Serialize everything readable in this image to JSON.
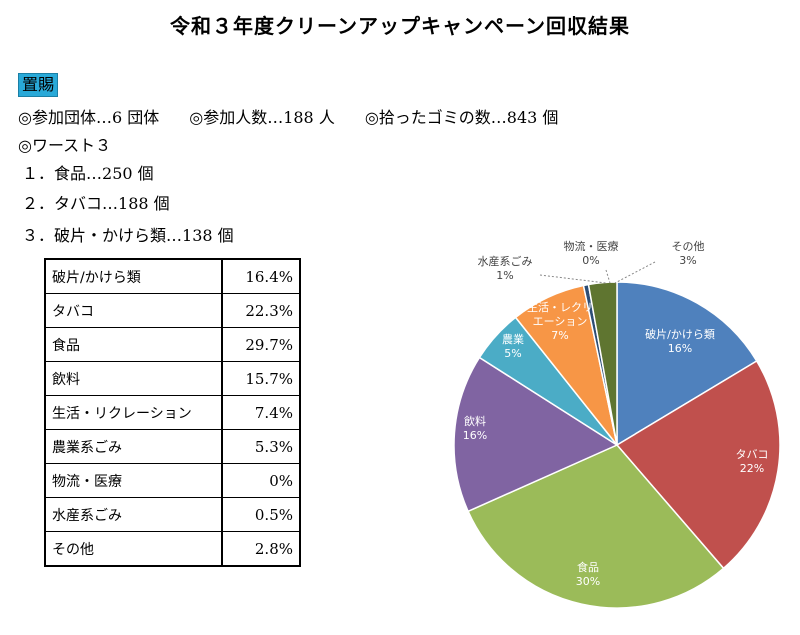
{
  "title": "令和３年度クリーンアップキャンペーン回収結果",
  "region": "置賜",
  "stats": {
    "groups": "◎参加団体…6 団体",
    "people": "◎参加人数…188 人",
    "trash": "◎拾ったゴミの数…843 個"
  },
  "worst": {
    "heading": "◎ワースト３",
    "items": [
      {
        "rank": "１．",
        "text": "食品…250 個"
      },
      {
        "rank": "２．",
        "text": "タバコ…188 個"
      },
      {
        "rank": "３．",
        "text": "破片・かけら類…138 個"
      }
    ]
  },
  "table": [
    {
      "category": "破片/かけら類",
      "value": "16.4%"
    },
    {
      "category": "タバコ",
      "value": "22.3%"
    },
    {
      "category": "食品",
      "value": "29.7%"
    },
    {
      "category": "飲料",
      "value": "15.7%"
    },
    {
      "category": "生活・リクレーション",
      "value": "7.4%"
    },
    {
      "category": "農業系ごみ",
      "value": "5.3%"
    },
    {
      "category": "物流・医療",
      "value": "0%"
    },
    {
      "category": "水産系ごみ",
      "value": "0.5%"
    },
    {
      "category": "その他",
      "value": "2.8%"
    }
  ],
  "chart_data": {
    "type": "pie",
    "start_angle_deg": 0,
    "direction": "clockwise",
    "slices": [
      {
        "name": "破片/かけら類",
        "value": 16.4,
        "label_pct": "16%",
        "color": "#4f81bd"
      },
      {
        "name": "タバコ",
        "value": 22.3,
        "label_pct": "22%",
        "color": "#c0504d"
      },
      {
        "name": "食品",
        "value": 29.7,
        "label_pct": "30%",
        "color": "#9bbb59"
      },
      {
        "name": "飲料",
        "value": 15.7,
        "label_pct": "16%",
        "color": "#8064a2"
      },
      {
        "name": "農業",
        "value": 5.3,
        "label_pct": "5%",
        "color": "#4bacc6"
      },
      {
        "name": "生活・レクリエーション",
        "value": 7.4,
        "label_pct": "7%",
        "color": "#f79646"
      },
      {
        "name": "水産系ごみ",
        "value": 0.5,
        "label_pct": "1%",
        "color": "#2c4d75"
      },
      {
        "name": "物流・医療",
        "value": 0,
        "label_pct": "0%",
        "color": "#772c2a"
      },
      {
        "name": "その他",
        "value": 2.8,
        "label_pct": "3%",
        "color": "#5f7530"
      }
    ]
  }
}
